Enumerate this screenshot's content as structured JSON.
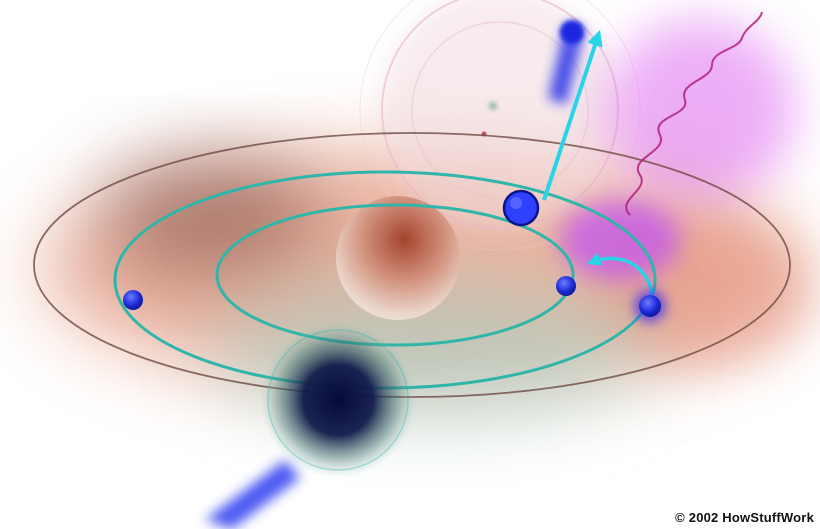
{
  "image": {
    "credit": "© 2002 HowStuffWork"
  },
  "colors": {
    "background": "#ffffff",
    "orbit": "#2fb5aa",
    "electron": "#1a2ad8",
    "arrow": "#27d6e6",
    "nucleus": "#c77a66",
    "disk_glow": "#e49a80",
    "photon_glow": "#e37bf0",
    "photon_wave": "#b0207a"
  }
}
